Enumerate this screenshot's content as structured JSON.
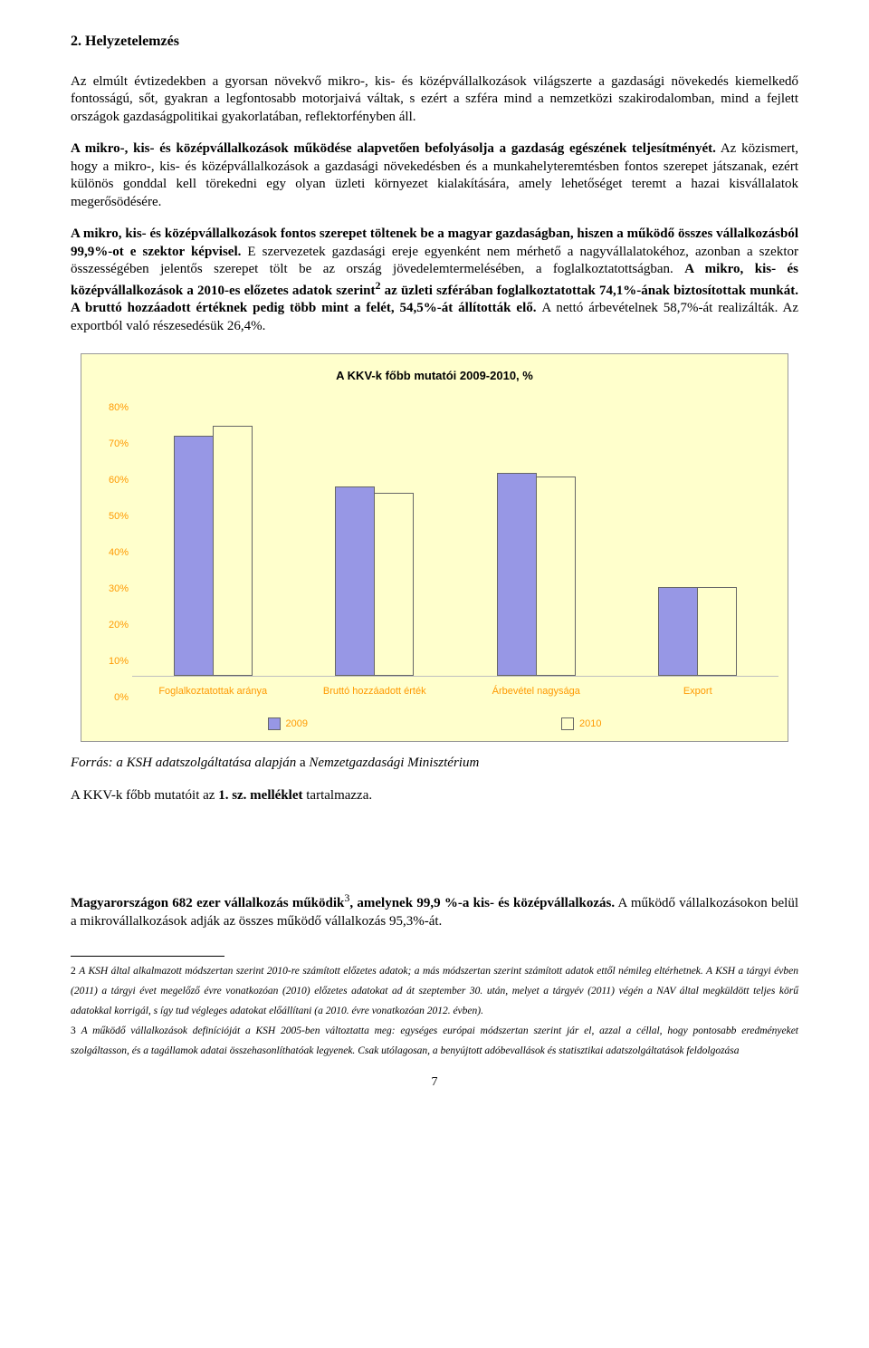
{
  "heading": "2. Helyzetelemzés",
  "paragraphs": {
    "p1": "Az elmúlt évtizedekben a gyorsan növekvő mikro-, kis- és középvállalkozások világszerte a gazdasági növekedés kiemelkedő fontosságú, sőt, gyakran a legfontosabb motorjaivá váltak, s ezért a szféra mind a nemzetközi szakirodalomban, mind a fejlett országok gazdaságpolitikai gyakorlatában, reflektorfényben áll.",
    "p2a": "A mikro-, kis- és középvállalkozások működése alapvetően befolyásolja a gazdaság egészének teljesítményét.",
    "p2b": " Az közismert, hogy a mikro-, kis- és középvállalkozások a gazdasági növekedésben és a munkahelyteremtésben fontos szerepet játszanak, ezért különös gonddal kell törekedni egy olyan üzleti környezet kialakítására, amely lehetőséget teremt a hazai kisvállalatok megerősödésére.",
    "p3a": "A mikro, kis- és középvállalkozások fontos szerepet töltenek be a magyar gazdaságban, hiszen a működő összes vállalkozásból 99,9%-ot e szektor képvisel.",
    "p3b": " E szervezetek gazdasági ereje egyenként nem mérhető a nagyvállalatokéhoz, azonban a szektor összességében jelentős szerepet tölt be az ország jövedelemtermelésében, a foglalkoztatottságban. ",
    "p3c": "A mikro, kis- és középvállalkozások a 2010-es előzetes adatok szerint",
    "p3c_sup": "2",
    "p3d": " az üzleti szférában foglalkoztatottak 74,1%-ának biztosítottak munkát. A bruttó hozzáadott értéknek pedig több mint a felét, 54,5%-át állították elő. ",
    "p3e": "A nettó árbevételnek 58,7%-át realizálták. ",
    "p3f": "Az exportból való részesedésük 26,4%."
  },
  "chart": {
    "type": "bar",
    "title": "A KKV-k főbb mutatói 2009-2010, %",
    "background_color": "#ffffcc",
    "bar_colors": {
      "series_a": "#9797e5",
      "series_b": "#ffffcc"
    },
    "axis_label_color": "#ff9900",
    "y_ticks": [
      "80%",
      "70%",
      "60%",
      "50%",
      "40%",
      "30%",
      "20%",
      "10%",
      "0%"
    ],
    "ymax": 80,
    "categories": [
      "Foglalkoztatottak aránya",
      "Bruttó hozzáadott érték",
      "Árbevétel nagysága",
      "Export"
    ],
    "series_a_label": "2009",
    "series_b_label": "2010",
    "series_a_values": [
      71,
      56,
      60,
      26
    ],
    "series_b_values": [
      74,
      54,
      59,
      26
    ]
  },
  "source_line_a": "Forrás: a KSH adatszolgáltatása alapján ",
  "source_line_b": "a ",
  "source_line_c": "Nemzetgazdasági Minisztérium",
  "after_chart_line_a": "A KKV-k főbb mutatóit az ",
  "after_chart_line_b": "1. sz. melléklet ",
  "after_chart_line_c": "tartalmazza.",
  "p4a": "Magyarországon 682 ezer vállalkozás működik",
  "p4_sup": "3",
  "p4b": ", amelynek 99,9 %-a kis- és középvállalkozás.",
  "p4c": " A működő vállalkozásokon belül a mikrovállalkozások adják az összes működő vállalkozás 95,3%-át.",
  "footnotes": {
    "f2_num": "2 ",
    "f2a": "A KSH által alkalmazott módszertan szerint ",
    "f2b": "2010",
    "f2c": "-re számított ",
    "f2d": "előzetes adatok; a más módszertan szerint számított adatok ettől némileg eltérhetnek. ",
    "f2e": "A KSH a tárgyi évben (2011) a tárgyi évet megelőző évre vonatkozóan (2010) előzetes adatokat ad át szeptember 30. ",
    "f2f": "után, melyet a tárgyév (2011) végén a NAV által megküldött teljes körű adatokkal korrigál, s így tud végleges adatokat előállítani (a 2010. ",
    "f2g": "évre vonatkozóan 2012. évben).",
    "f3_num": "3 ",
    "f3a": "A működő vállalkozások definícióját a KSH 2005-ben változtatta meg: egységes európai módszertan szerint jár el, azzal a céllal, hogy pontosabb eredményeket szolgáltasson, és a tagállamok adatai összehasonlíthatóak legyenek. ",
    "f3b": "Csak utólagosan, a benyújtott adóbevallások és statisztikai adatszolgáltatások feldolgozása"
  },
  "page_number": "7"
}
